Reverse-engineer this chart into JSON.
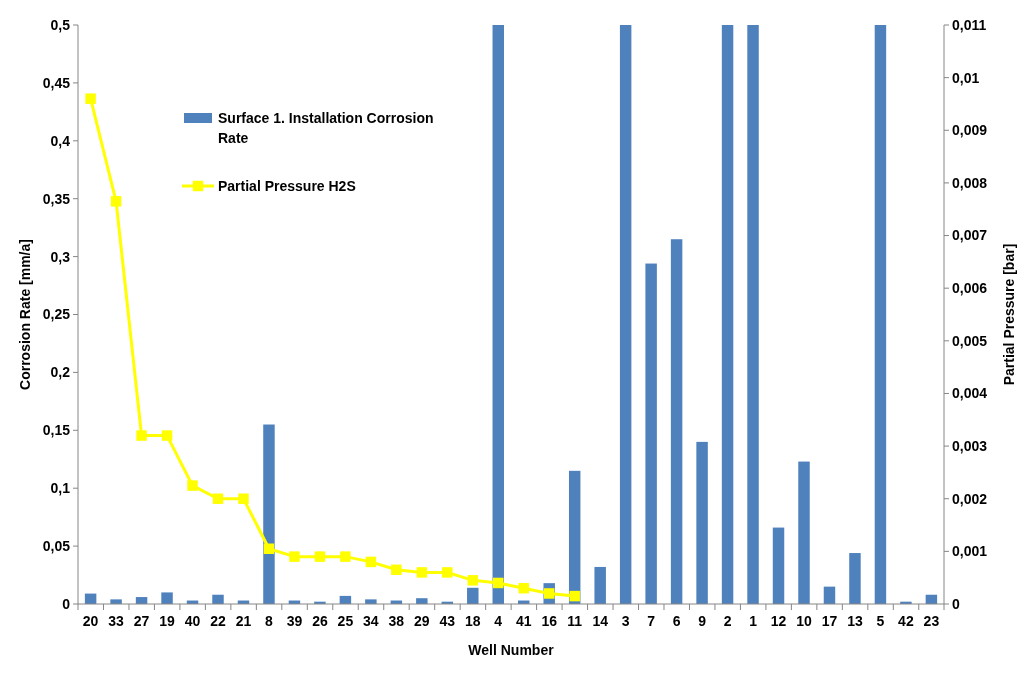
{
  "chart_data": {
    "type": "bar",
    "xlabel": "Well Number",
    "ylabel": "Corrosion Rate [mm/a]",
    "y2label": "Partial Pressure [bar]",
    "categories": [
      "20",
      "33",
      "27",
      "19",
      "40",
      "22",
      "21",
      "8",
      "39",
      "26",
      "25",
      "34",
      "38",
      "29",
      "43",
      "18",
      "4",
      "41",
      "16",
      "11",
      "14",
      "3",
      "7",
      "6",
      "9",
      "2",
      "1",
      "12",
      "10",
      "17",
      "13",
      "5",
      "42",
      "23"
    ],
    "series": [
      {
        "name": "Surface 1. Installation Corrosion Rate",
        "color": "#4f81bd",
        "values": [
          0.009,
          0.004,
          0.006,
          0.01,
          0.003,
          0.008,
          0.003,
          0.155,
          0.003,
          0.002,
          0.007,
          0.004,
          0.003,
          0.005,
          0.002,
          0.014,
          0.5,
          0.003,
          0.018,
          0.115,
          0.032,
          0.5,
          0.294,
          0.315,
          0.14,
          0.5,
          0.5,
          0.066,
          0.123,
          0.015,
          0.044,
          0.5,
          0.002,
          0.008
        ]
      },
      {
        "name": "Partial Pressure H2S",
        "type": "line",
        "axis": "y2",
        "color": "#ffff00",
        "marker": "square",
        "values": [
          0.0096,
          0.00765,
          0.0032,
          0.0032,
          0.00225,
          0.002,
          0.002,
          0.00105,
          0.0009,
          0.0009,
          0.0009,
          0.0008,
          0.00065,
          0.0006,
          0.0006,
          0.00045,
          0.0004,
          0.0003,
          0.0002,
          0.00015,
          null,
          null,
          null,
          null,
          null,
          null,
          null,
          null,
          null,
          null,
          null,
          null,
          null,
          null
        ]
      }
    ],
    "ylim": [
      0,
      0.5
    ],
    "yticks": [
      {
        "value": 0,
        "label": "0"
      },
      {
        "value": 0.05,
        "label": "0,05"
      },
      {
        "value": 0.1,
        "label": "0,1"
      },
      {
        "value": 0.15,
        "label": "0,15"
      },
      {
        "value": 0.2,
        "label": "0,2"
      },
      {
        "value": 0.25,
        "label": "0,25"
      },
      {
        "value": 0.3,
        "label": "0,3"
      },
      {
        "value": 0.35,
        "label": "0,35"
      },
      {
        "value": 0.4,
        "label": "0,4"
      },
      {
        "value": 0.45,
        "label": "0,45"
      },
      {
        "value": 0.5,
        "label": "0,5"
      }
    ],
    "y2lim": [
      0,
      0.011
    ],
    "y2ticks": [
      {
        "value": 0,
        "label": "0"
      },
      {
        "value": 0.001,
        "label": "0,001"
      },
      {
        "value": 0.002,
        "label": "0,002"
      },
      {
        "value": 0.003,
        "label": "0,003"
      },
      {
        "value": 0.004,
        "label": "0,004"
      },
      {
        "value": 0.005,
        "label": "0,005"
      },
      {
        "value": 0.006,
        "label": "0,006"
      },
      {
        "value": 0.007,
        "label": "0,007"
      },
      {
        "value": 0.008,
        "label": "0,008"
      },
      {
        "value": 0.009,
        "label": "0,009"
      },
      {
        "value": 0.01,
        "label": "0,01"
      },
      {
        "value": 0.011,
        "label": "0,011"
      }
    ],
    "grid": false,
    "legend": "top left"
  }
}
